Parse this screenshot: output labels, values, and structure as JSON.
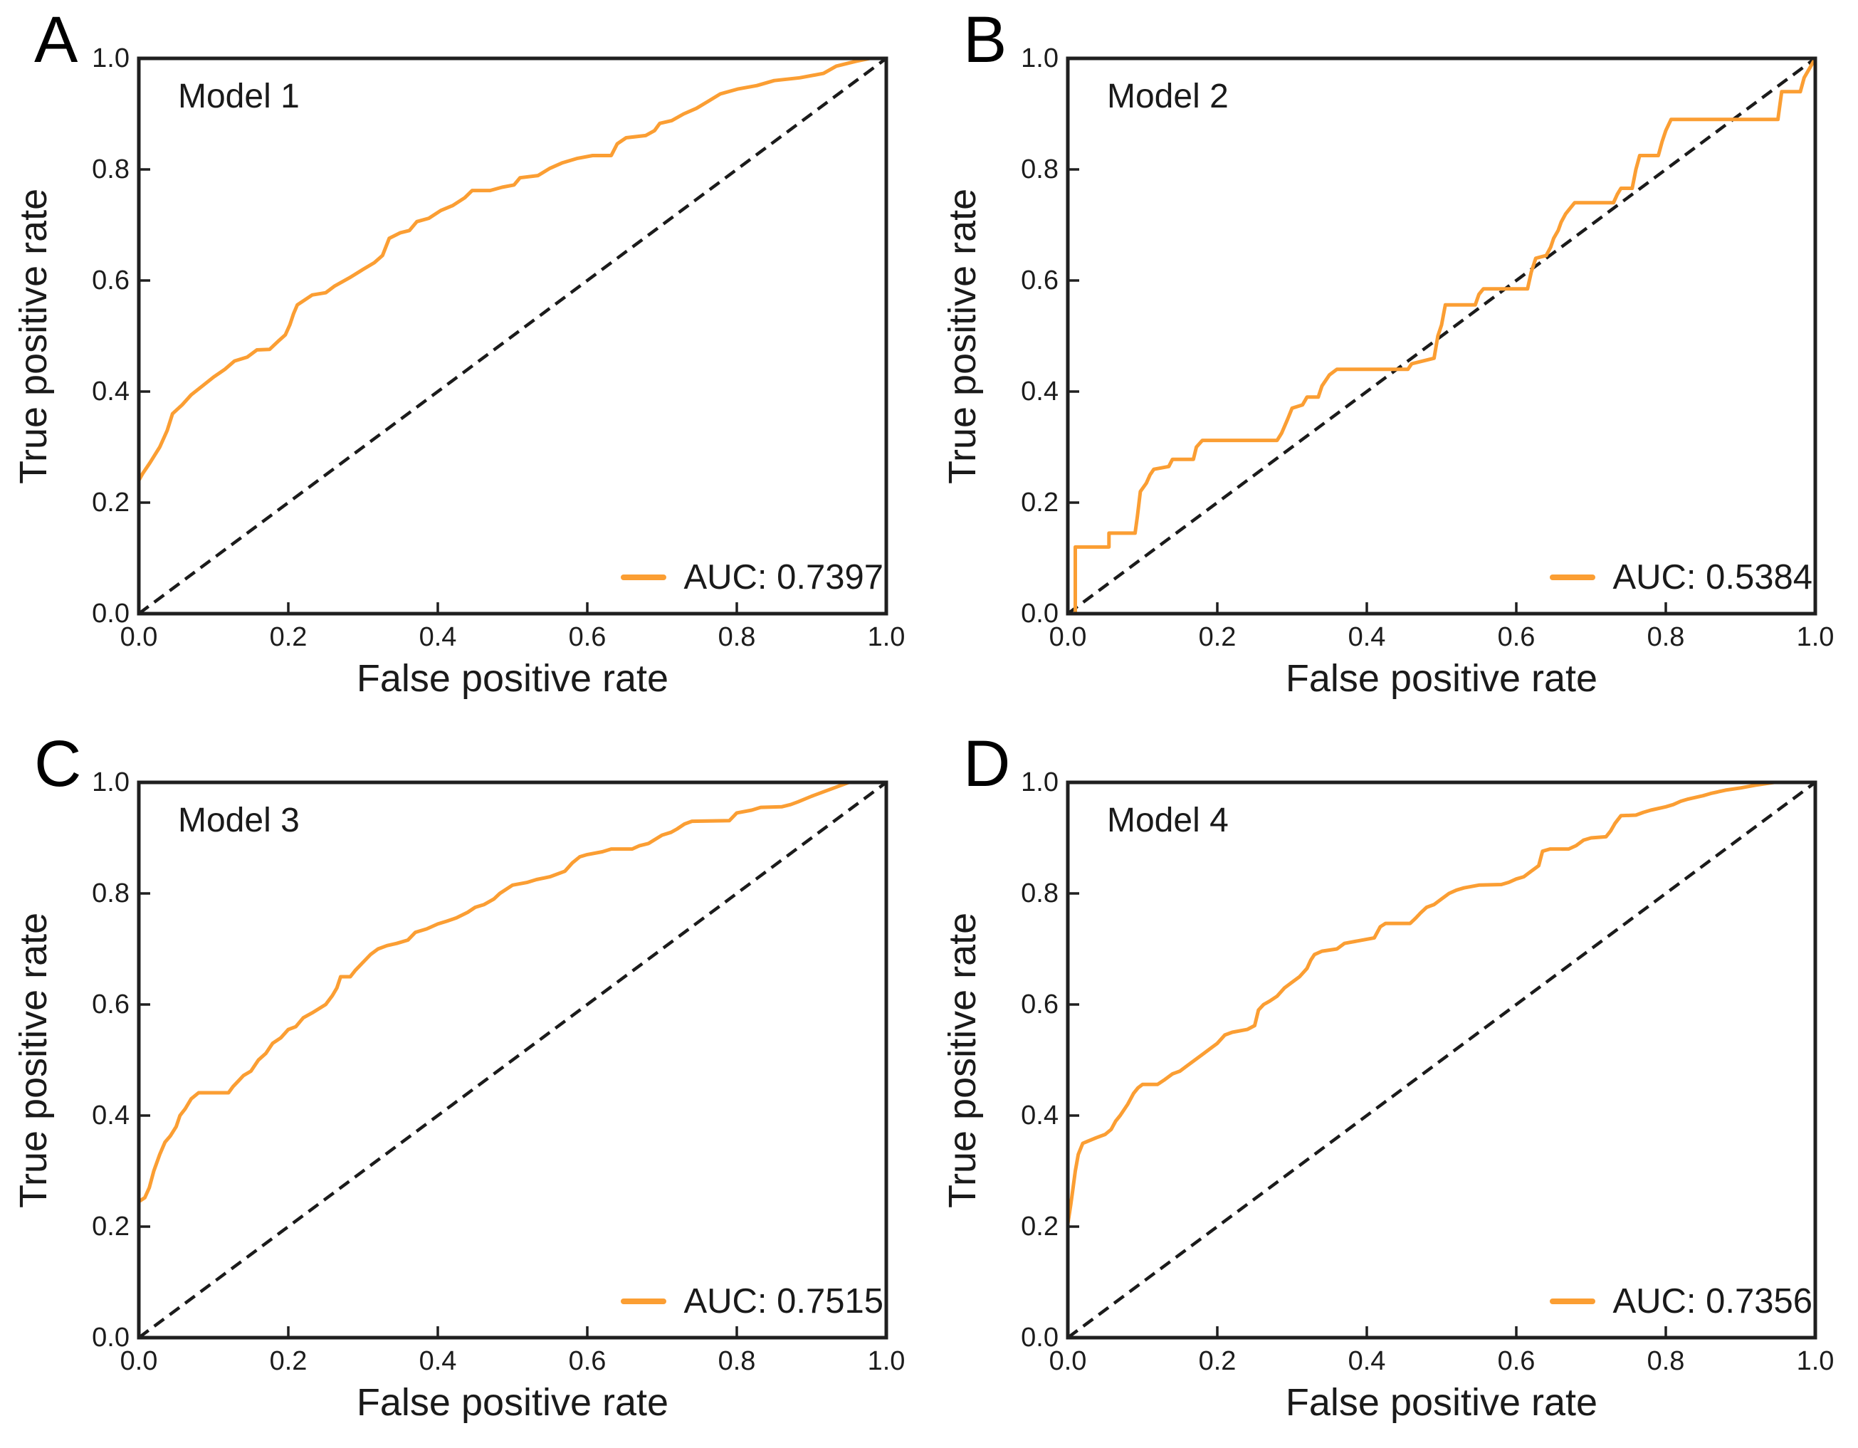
{
  "figure": {
    "colors": {
      "curve": "#FB9E33",
      "diagonal": "#1b1b1b",
      "axis": "#1f1f1f",
      "text": "#1a1a1a"
    },
    "axes": {
      "xlabel": "False positive rate",
      "ylabel": "True positive rate",
      "x_ticks": [
        "0.0",
        "0.2",
        "0.4",
        "0.6",
        "0.8",
        "1.0"
      ],
      "y_ticks_top_to_bottom": [
        "1.0",
        "0.8",
        "0.6",
        "0.4",
        "0.2",
        "0.0"
      ],
      "xlim": [
        0,
        1
      ],
      "ylim": [
        0,
        1
      ],
      "grid": false,
      "legend_position": "lower right"
    }
  },
  "chart_data": [
    {
      "type": "line",
      "panel": "A",
      "title": "Model 1",
      "legend": "AUC: 0.7397",
      "auc": 0.7397,
      "diagonal": [
        [
          0,
          0
        ],
        [
          1,
          1
        ]
      ],
      "roc_points": [
        [
          0,
          0.21
        ],
        [
          0,
          0.24
        ],
        [
          0.005,
          0.252
        ],
        [
          0.015,
          0.272
        ],
        [
          0.028,
          0.3
        ],
        [
          0.038,
          0.33
        ],
        [
          0.045,
          0.36
        ],
        [
          0.058,
          0.376
        ],
        [
          0.07,
          0.394
        ],
        [
          0.085,
          0.41
        ],
        [
          0.1,
          0.426
        ],
        [
          0.115,
          0.44
        ],
        [
          0.128,
          0.455
        ],
        [
          0.145,
          0.462
        ],
        [
          0.158,
          0.475
        ],
        [
          0.175,
          0.476
        ],
        [
          0.186,
          0.49
        ],
        [
          0.196,
          0.502
        ],
        [
          0.202,
          0.52
        ],
        [
          0.207,
          0.54
        ],
        [
          0.212,
          0.556
        ],
        [
          0.222,
          0.565
        ],
        [
          0.232,
          0.574
        ],
        [
          0.25,
          0.578
        ],
        [
          0.262,
          0.59
        ],
        [
          0.282,
          0.605
        ],
        [
          0.3,
          0.62
        ],
        [
          0.315,
          0.632
        ],
        [
          0.326,
          0.645
        ],
        [
          0.335,
          0.676
        ],
        [
          0.35,
          0.686
        ],
        [
          0.362,
          0.69
        ],
        [
          0.372,
          0.706
        ],
        [
          0.388,
          0.712
        ],
        [
          0.404,
          0.726
        ],
        [
          0.42,
          0.735
        ],
        [
          0.436,
          0.749
        ],
        [
          0.446,
          0.762
        ],
        [
          0.47,
          0.762
        ],
        [
          0.486,
          0.768
        ],
        [
          0.502,
          0.772
        ],
        [
          0.51,
          0.785
        ],
        [
          0.534,
          0.789
        ],
        [
          0.55,
          0.802
        ],
        [
          0.567,
          0.812
        ],
        [
          0.587,
          0.82
        ],
        [
          0.607,
          0.825
        ],
        [
          0.632,
          0.825
        ],
        [
          0.64,
          0.846
        ],
        [
          0.652,
          0.857
        ],
        [
          0.678,
          0.861
        ],
        [
          0.69,
          0.87
        ],
        [
          0.697,
          0.883
        ],
        [
          0.713,
          0.888
        ],
        [
          0.729,
          0.9
        ],
        [
          0.746,
          0.91
        ],
        [
          0.762,
          0.923
        ],
        [
          0.778,
          0.936
        ],
        [
          0.802,
          0.945
        ],
        [
          0.827,
          0.951
        ],
        [
          0.85,
          0.96
        ],
        [
          0.884,
          0.965
        ],
        [
          0.916,
          0.973
        ],
        [
          0.933,
          0.986
        ],
        [
          0.96,
          0.995
        ],
        [
          0.978,
          1.0
        ],
        [
          1.0,
          1.0
        ]
      ]
    },
    {
      "type": "line",
      "panel": "B",
      "title": "Model 2",
      "legend": "AUC: 0.5384",
      "auc": 0.5384,
      "diagonal": [
        [
          0,
          0
        ],
        [
          1,
          1
        ]
      ],
      "roc_points": [
        [
          0,
          0
        ],
        [
          0.01,
          0
        ],
        [
          0.01,
          0.12
        ],
        [
          0.055,
          0.12
        ],
        [
          0.055,
          0.145
        ],
        [
          0.09,
          0.145
        ],
        [
          0.093,
          0.175
        ],
        [
          0.097,
          0.22
        ],
        [
          0.105,
          0.235
        ],
        [
          0.11,
          0.25
        ],
        [
          0.115,
          0.26
        ],
        [
          0.135,
          0.265
        ],
        [
          0.14,
          0.278
        ],
        [
          0.168,
          0.278
        ],
        [
          0.172,
          0.3
        ],
        [
          0.18,
          0.312
        ],
        [
          0.28,
          0.312
        ],
        [
          0.286,
          0.325
        ],
        [
          0.294,
          0.35
        ],
        [
          0.3,
          0.37
        ],
        [
          0.314,
          0.376
        ],
        [
          0.32,
          0.39
        ],
        [
          0.335,
          0.39
        ],
        [
          0.34,
          0.41
        ],
        [
          0.35,
          0.43
        ],
        [
          0.36,
          0.44
        ],
        [
          0.455,
          0.44
        ],
        [
          0.46,
          0.45
        ],
        [
          0.475,
          0.455
        ],
        [
          0.49,
          0.46
        ],
        [
          0.495,
          0.5
        ],
        [
          0.5,
          0.52
        ],
        [
          0.505,
          0.556
        ],
        [
          0.545,
          0.556
        ],
        [
          0.55,
          0.575
        ],
        [
          0.556,
          0.585
        ],
        [
          0.615,
          0.585
        ],
        [
          0.62,
          0.615
        ],
        [
          0.626,
          0.64
        ],
        [
          0.64,
          0.645
        ],
        [
          0.646,
          0.66
        ],
        [
          0.65,
          0.676
        ],
        [
          0.656,
          0.69
        ],
        [
          0.66,
          0.705
        ],
        [
          0.666,
          0.72
        ],
        [
          0.672,
          0.73
        ],
        [
          0.678,
          0.74
        ],
        [
          0.73,
          0.74
        ],
        [
          0.735,
          0.755
        ],
        [
          0.74,
          0.766
        ],
        [
          0.755,
          0.766
        ],
        [
          0.76,
          0.8
        ],
        [
          0.765,
          0.825
        ],
        [
          0.79,
          0.825
        ],
        [
          0.795,
          0.85
        ],
        [
          0.8,
          0.87
        ],
        [
          0.807,
          0.89
        ],
        [
          0.95,
          0.89
        ],
        [
          0.955,
          0.94
        ],
        [
          0.98,
          0.94
        ],
        [
          0.985,
          0.965
        ],
        [
          1.0,
          1.0
        ]
      ]
    },
    {
      "type": "line",
      "panel": "C",
      "title": "Model 3",
      "legend": "AUC: 0.7515",
      "auc": 0.7515,
      "diagonal": [
        [
          0,
          0
        ],
        [
          1,
          1
        ]
      ],
      "roc_points": [
        [
          0,
          0.2
        ],
        [
          0,
          0.245
        ],
        [
          0.008,
          0.252
        ],
        [
          0.014,
          0.27
        ],
        [
          0.02,
          0.3
        ],
        [
          0.028,
          0.33
        ],
        [
          0.035,
          0.352
        ],
        [
          0.042,
          0.363
        ],
        [
          0.05,
          0.38
        ],
        [
          0.055,
          0.4
        ],
        [
          0.062,
          0.412
        ],
        [
          0.07,
          0.43
        ],
        [
          0.08,
          0.441
        ],
        [
          0.12,
          0.441
        ],
        [
          0.126,
          0.452
        ],
        [
          0.133,
          0.462
        ],
        [
          0.14,
          0.472
        ],
        [
          0.15,
          0.48
        ],
        [
          0.16,
          0.5
        ],
        [
          0.17,
          0.512
        ],
        [
          0.179,
          0.53
        ],
        [
          0.19,
          0.54
        ],
        [
          0.2,
          0.555
        ],
        [
          0.21,
          0.56
        ],
        [
          0.22,
          0.576
        ],
        [
          0.232,
          0.585
        ],
        [
          0.25,
          0.6
        ],
        [
          0.259,
          0.616
        ],
        [
          0.265,
          0.63
        ],
        [
          0.27,
          0.65
        ],
        [
          0.283,
          0.65
        ],
        [
          0.29,
          0.662
        ],
        [
          0.3,
          0.676
        ],
        [
          0.31,
          0.69
        ],
        [
          0.32,
          0.7
        ],
        [
          0.332,
          0.706
        ],
        [
          0.345,
          0.71
        ],
        [
          0.36,
          0.716
        ],
        [
          0.37,
          0.73
        ],
        [
          0.385,
          0.736
        ],
        [
          0.4,
          0.745
        ],
        [
          0.412,
          0.75
        ],
        [
          0.425,
          0.756
        ],
        [
          0.44,
          0.766
        ],
        [
          0.45,
          0.775
        ],
        [
          0.462,
          0.78
        ],
        [
          0.475,
          0.79
        ],
        [
          0.483,
          0.8
        ],
        [
          0.5,
          0.815
        ],
        [
          0.52,
          0.82
        ],
        [
          0.532,
          0.825
        ],
        [
          0.55,
          0.83
        ],
        [
          0.57,
          0.84
        ],
        [
          0.58,
          0.855
        ],
        [
          0.59,
          0.866
        ],
        [
          0.6,
          0.87
        ],
        [
          0.62,
          0.875
        ],
        [
          0.632,
          0.88
        ],
        [
          0.66,
          0.88
        ],
        [
          0.67,
          0.886
        ],
        [
          0.682,
          0.89
        ],
        [
          0.7,
          0.905
        ],
        [
          0.712,
          0.91
        ],
        [
          0.72,
          0.916
        ],
        [
          0.73,
          0.925
        ],
        [
          0.74,
          0.93
        ],
        [
          0.79,
          0.931
        ],
        [
          0.8,
          0.945
        ],
        [
          0.82,
          0.95
        ],
        [
          0.832,
          0.955
        ],
        [
          0.86,
          0.956
        ],
        [
          0.872,
          0.96
        ],
        [
          0.882,
          0.965
        ],
        [
          0.9,
          0.975
        ],
        [
          0.92,
          0.985
        ],
        [
          0.93,
          0.99
        ],
        [
          0.95,
          1.0
        ],
        [
          1.0,
          1.0
        ]
      ]
    },
    {
      "type": "line",
      "panel": "D",
      "title": "Model 4",
      "legend": "AUC: 0.7356",
      "auc": 0.7356,
      "diagonal": [
        [
          0,
          0
        ],
        [
          1,
          1
        ]
      ],
      "roc_points": [
        [
          0,
          0.13
        ],
        [
          0,
          0.205
        ],
        [
          0.004,
          0.24
        ],
        [
          0.007,
          0.27
        ],
        [
          0.01,
          0.3
        ],
        [
          0.014,
          0.33
        ],
        [
          0.02,
          0.35
        ],
        [
          0.038,
          0.36
        ],
        [
          0.05,
          0.366
        ],
        [
          0.058,
          0.375
        ],
        [
          0.064,
          0.39
        ],
        [
          0.07,
          0.4
        ],
        [
          0.08,
          0.42
        ],
        [
          0.088,
          0.44
        ],
        [
          0.094,
          0.45
        ],
        [
          0.1,
          0.456
        ],
        [
          0.12,
          0.456
        ],
        [
          0.13,
          0.465
        ],
        [
          0.14,
          0.475
        ],
        [
          0.15,
          0.48
        ],
        [
          0.16,
          0.49
        ],
        [
          0.17,
          0.5
        ],
        [
          0.18,
          0.51
        ],
        [
          0.19,
          0.52
        ],
        [
          0.2,
          0.53
        ],
        [
          0.21,
          0.545
        ],
        [
          0.22,
          0.55
        ],
        [
          0.24,
          0.555
        ],
        [
          0.25,
          0.562
        ],
        [
          0.255,
          0.59
        ],
        [
          0.262,
          0.6
        ],
        [
          0.27,
          0.606
        ],
        [
          0.28,
          0.615
        ],
        [
          0.29,
          0.63
        ],
        [
          0.3,
          0.64
        ],
        [
          0.31,
          0.65
        ],
        [
          0.32,
          0.665
        ],
        [
          0.325,
          0.68
        ],
        [
          0.33,
          0.69
        ],
        [
          0.34,
          0.696
        ],
        [
          0.36,
          0.7
        ],
        [
          0.37,
          0.71
        ],
        [
          0.39,
          0.715
        ],
        [
          0.41,
          0.72
        ],
        [
          0.418,
          0.74
        ],
        [
          0.425,
          0.746
        ],
        [
          0.458,
          0.746
        ],
        [
          0.465,
          0.755
        ],
        [
          0.472,
          0.765
        ],
        [
          0.48,
          0.775
        ],
        [
          0.49,
          0.78
        ],
        [
          0.5,
          0.79
        ],
        [
          0.51,
          0.8
        ],
        [
          0.52,
          0.806
        ],
        [
          0.53,
          0.81
        ],
        [
          0.55,
          0.815
        ],
        [
          0.58,
          0.816
        ],
        [
          0.59,
          0.82
        ],
        [
          0.6,
          0.826
        ],
        [
          0.61,
          0.83
        ],
        [
          0.62,
          0.84
        ],
        [
          0.63,
          0.85
        ],
        [
          0.635,
          0.876
        ],
        [
          0.645,
          0.88
        ],
        [
          0.67,
          0.88
        ],
        [
          0.68,
          0.886
        ],
        [
          0.69,
          0.896
        ],
        [
          0.7,
          0.9
        ],
        [
          0.72,
          0.902
        ],
        [
          0.726,
          0.912
        ],
        [
          0.732,
          0.926
        ],
        [
          0.74,
          0.94
        ],
        [
          0.76,
          0.941
        ],
        [
          0.77,
          0.946
        ],
        [
          0.78,
          0.95
        ],
        [
          0.8,
          0.956
        ],
        [
          0.81,
          0.96
        ],
        [
          0.82,
          0.966
        ],
        [
          0.83,
          0.97
        ],
        [
          0.85,
          0.976
        ],
        [
          0.86,
          0.98
        ],
        [
          0.88,
          0.986
        ],
        [
          0.9,
          0.99
        ],
        [
          0.92,
          0.995
        ],
        [
          0.945,
          1.0
        ],
        [
          1.0,
          1.0
        ]
      ]
    }
  ]
}
